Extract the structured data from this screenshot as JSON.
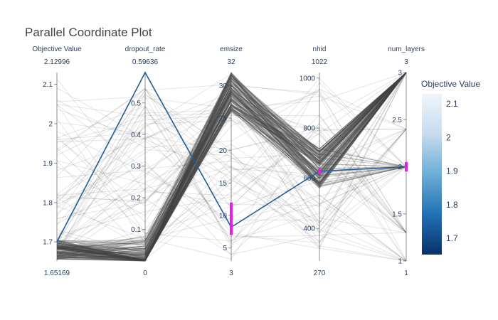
{
  "chart_data": {
    "type": "parallel_coordinates",
    "title": "Parallel Coordinate Plot",
    "axes": [
      {
        "key": "objective",
        "label": "Objective Value",
        "min_label": "1.65169",
        "max_label": "2.12996",
        "range": [
          1.65169,
          2.12996
        ],
        "ticks": [
          "1.7",
          "1.8",
          "1.9",
          "2",
          "2.1"
        ]
      },
      {
        "key": "dropout",
        "label": "dropout_rate",
        "min_label": "0",
        "max_label": "0.59636",
        "range": [
          0,
          0.59636
        ],
        "ticks": [
          "0.1",
          "0.2",
          "0.3",
          "0.4",
          "0.5"
        ]
      },
      {
        "key": "emsize",
        "label": "emsize",
        "min_label": "3",
        "max_label": "32",
        "range": [
          3,
          32
        ],
        "ticks": [
          "5",
          "10",
          "15",
          "20",
          "25",
          "30"
        ]
      },
      {
        "key": "nhid",
        "label": "nhid",
        "min_label": "270",
        "max_label": "1022",
        "range": [
          270,
          1022
        ],
        "ticks": [
          "400",
          "600",
          "800",
          "1000"
        ]
      },
      {
        "key": "num_layers",
        "label": "num_layers",
        "min_label": "1",
        "max_label": "3",
        "range": [
          1,
          3
        ],
        "ticks": [
          "1",
          "1.5",
          "2",
          "2.5",
          "3"
        ]
      }
    ],
    "highlighted_trial": [
      1.7,
      0.59636,
      8.2,
      628,
      2
    ],
    "constraint_ranges": {
      "emsize": [
        7,
        12
      ],
      "nhid": [
        618,
        636
      ],
      "num_layers": [
        1.95,
        2.05
      ]
    },
    "colorbar": {
      "title": "Objective Value",
      "range": [
        1.65169,
        2.12996
      ],
      "ticks": [
        "1.7",
        "1.8",
        "1.9",
        "2",
        "2.1"
      ],
      "colors": [
        "#0a306b",
        "#2171b5",
        "#6baed6",
        "#c6dbef",
        "#f0f4fb"
      ]
    },
    "highlight_color": "#225d99",
    "selection_color": "#e81ee6",
    "line_color": "#444444"
  }
}
